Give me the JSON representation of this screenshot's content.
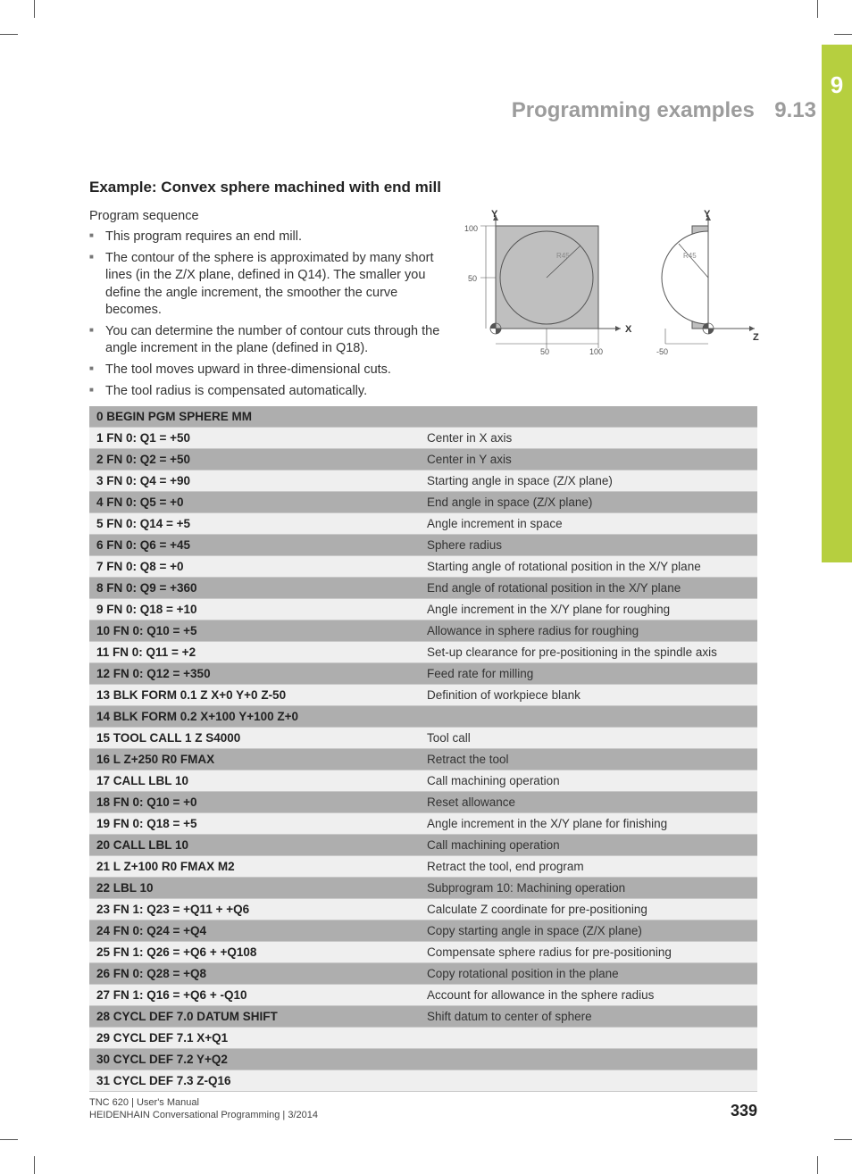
{
  "sidebar": {
    "chapter_number": "9",
    "bg": "#b6cf3f"
  },
  "header": {
    "title": "Programming examples",
    "section": "9.13"
  },
  "example": {
    "title": "Example: Convex sphere machined with end mill",
    "sequence_label": "Program sequence",
    "bullets": [
      "This program requires an end mill.",
      "The contour of the sphere is approximated by many short lines (in the Z/X plane, defined in Q14). The smaller you define the angle increment, the smoother the curve becomes.",
      "You can determine the number of contour cuts through the angle increment in the plane (defined in Q18).",
      "The tool moves upward in three-dimensional cuts.",
      "The tool radius is compensated automatically."
    ]
  },
  "diagram": {
    "left": {
      "y_label": "Y",
      "x_label": "X",
      "x_ticks": [
        "50",
        "100"
      ],
      "y_ticks": [
        "50",
        "100"
      ],
      "radius_label": "R45"
    },
    "right": {
      "y_label": "Y",
      "z_label": "Z",
      "z_tick": "-50",
      "radius_label": "R45"
    },
    "colors": {
      "fill": "#bfbfbf",
      "stroke": "#555",
      "text": "#555"
    }
  },
  "program": {
    "header_row": "0 BEGIN PGM SPHERE MM",
    "rows": [
      {
        "code": "1 FN 0: Q1 = +50",
        "desc": "Center in X axis"
      },
      {
        "code": "2 FN 0: Q2 = +50",
        "desc": "Center in Y axis"
      },
      {
        "code": "3 FN 0: Q4 = +90",
        "desc": "Starting angle in space (Z/X plane)"
      },
      {
        "code": "4 FN 0: Q5 = +0",
        "desc": "End angle in space (Z/X plane)"
      },
      {
        "code": "5 FN 0: Q14 = +5",
        "desc": "Angle increment in space"
      },
      {
        "code": "6 FN 0: Q6 = +45",
        "desc": "Sphere radius"
      },
      {
        "code": "7 FN 0: Q8 = +0",
        "desc": "Starting angle of rotational position in the X/Y plane"
      },
      {
        "code": "8 FN 0: Q9 = +360",
        "desc": "End angle of rotational position in the X/Y plane"
      },
      {
        "code": "9 FN 0: Q18 = +10",
        "desc": "Angle increment in the X/Y plane for roughing"
      },
      {
        "code": "10 FN 0: Q10 = +5",
        "desc": "Allowance in sphere radius for roughing"
      },
      {
        "code": "11 FN 0: Q11 = +2",
        "desc": "Set-up clearance for pre-positioning in the spindle axis"
      },
      {
        "code": "12 FN 0: Q12 = +350",
        "desc": "Feed rate for milling"
      },
      {
        "code": "13 BLK FORM 0.1 Z X+0 Y+0 Z-50",
        "desc": "Definition of workpiece blank"
      },
      {
        "code": "14 BLK FORM 0.2 X+100 Y+100 Z+0",
        "desc": ""
      },
      {
        "code": "15 TOOL CALL 1 Z S4000",
        "desc": "Tool call"
      },
      {
        "code": "16 L Z+250 R0 FMAX",
        "desc": "Retract the tool"
      },
      {
        "code": "17 CALL LBL 10",
        "desc": "Call machining operation"
      },
      {
        "code": "18 FN 0: Q10 = +0",
        "desc": "Reset allowance"
      },
      {
        "code": "19 FN 0: Q18 = +5",
        "desc": "Angle increment in the X/Y plane for finishing"
      },
      {
        "code": "20 CALL LBL 10",
        "desc": "Call machining operation"
      },
      {
        "code": "21 L Z+100 R0 FMAX M2",
        "desc": "Retract the tool, end program"
      },
      {
        "code": "22 LBL 10",
        "desc": "Subprogram 10: Machining operation"
      },
      {
        "code": "23 FN 1: Q23 = +Q11 + +Q6",
        "desc": "Calculate Z coordinate for pre-positioning"
      },
      {
        "code": "24 FN 0: Q24 = +Q4",
        "desc": "Copy starting angle in space (Z/X plane)"
      },
      {
        "code": "25 FN 1: Q26 = +Q6 + +Q108",
        "desc": "Compensate sphere radius for pre-positioning"
      },
      {
        "code": "26 FN 0: Q28 = +Q8",
        "desc": "Copy rotational position in the plane"
      },
      {
        "code": "27 FN 1: Q16 = +Q6 + -Q10",
        "desc": "Account for allowance in the sphere radius"
      },
      {
        "code": "28 CYCL DEF 7.0 DATUM SHIFT",
        "desc": "Shift datum to center of sphere"
      },
      {
        "code": "29 CYCL DEF 7.1 X+Q1",
        "desc": ""
      },
      {
        "code": "30 CYCL DEF 7.2 Y+Q2",
        "desc": ""
      },
      {
        "code": "31 CYCL DEF 7.3 Z-Q16",
        "desc": ""
      }
    ],
    "row_bg_dark": "#aeaeae",
    "row_bg_light": "#efefef",
    "border_color": "#c9c9c9"
  },
  "footer": {
    "line1": "TNC 620 | User's Manual",
    "line2": "HEIDENHAIN Conversational Programming | 3/2014",
    "page_number": "339"
  }
}
